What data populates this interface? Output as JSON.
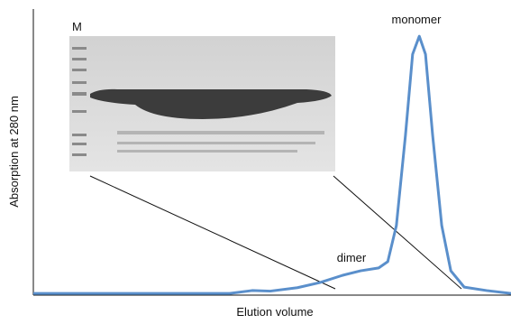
{
  "chart_data": {
    "type": "line",
    "x": [
      0,
      41.1,
      45.8,
      49.6,
      55.3,
      60,
      64.7,
      68.5,
      72.3,
      74.2,
      76,
      77.9,
      79.4,
      80.8,
      82.1,
      83.6,
      85.5,
      87.4,
      90.2,
      94.9,
      100
    ],
    "series": [
      {
        "color": "#5a8fcb",
        "values": [
          0.6,
          0.6,
          1.6,
          1.4,
          2.6,
          4.4,
          6.9,
          8.5,
          9.5,
          11.7,
          24.3,
          55.8,
          84.2,
          90.5,
          84.2,
          55.8,
          24.3,
          8.5,
          2.8,
          1.6,
          0.6
        ]
      }
    ],
    "xlim": [
      0,
      100
    ],
    "ylim": [
      0,
      100
    ],
    "x_label": "Elution volume",
    "y_label": "Absorption at 280 nm",
    "annotations": [
      "monomer",
      "dimer"
    ],
    "inset_label": "M"
  }
}
